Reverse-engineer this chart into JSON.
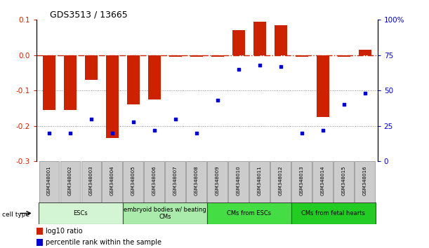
{
  "title": "GDS3513 / 13665",
  "samples": [
    "GSM348001",
    "GSM348002",
    "GSM348003",
    "GSM348004",
    "GSM348005",
    "GSM348006",
    "GSM348007",
    "GSM348008",
    "GSM348009",
    "GSM348010",
    "GSM348011",
    "GSM348012",
    "GSM348013",
    "GSM348014",
    "GSM348015",
    "GSM348016"
  ],
  "log10_ratio": [
    -0.155,
    -0.155,
    -0.07,
    -0.235,
    -0.14,
    -0.125,
    -0.005,
    -0.005,
    -0.005,
    0.07,
    0.095,
    0.085,
    -0.005,
    -0.175,
    -0.005,
    0.015
  ],
  "percentile_rank": [
    20,
    20,
    30,
    20,
    28,
    22,
    30,
    20,
    43,
    65,
    68,
    67,
    20,
    22,
    40,
    48
  ],
  "cell_type_groups": [
    {
      "label": "ESCs",
      "start": 0,
      "end": 3,
      "color": "#d4f5d4"
    },
    {
      "label": "embryoid bodies w/ beating\nCMs",
      "start": 4,
      "end": 7,
      "color": "#aaeaaa"
    },
    {
      "label": "CMs from ESCs",
      "start": 8,
      "end": 11,
      "color": "#44dd44"
    },
    {
      "label": "CMs from fetal hearts",
      "start": 12,
      "end": 15,
      "color": "#22cc22"
    }
  ],
  "bar_color": "#cc2200",
  "dot_color": "#0000cc",
  "ref_line_color": "#cc2200",
  "dotted_line_color": "#888888",
  "ylim_left": [
    -0.3,
    0.1
  ],
  "ylim_right": [
    0,
    100
  ],
  "yticks_left": [
    -0.3,
    -0.2,
    -0.1,
    0.0,
    0.1
  ],
  "yticks_right": [
    0,
    25,
    50,
    75,
    100
  ],
  "ytick_labels_right": [
    "0",
    "25",
    "50",
    "75",
    "100%"
  ]
}
